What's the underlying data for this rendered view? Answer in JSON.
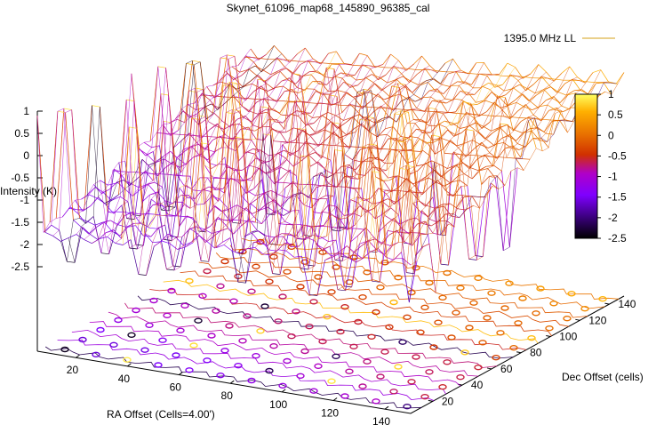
{
  "chart_data": {
    "type": "surface",
    "title": "Skynet_61096_map68_145890_96385_cal",
    "zlabel": "Intensity (K)",
    "xlabel": "RA Offset (Cells=4.00')",
    "ylabel": "Dec Offset (cells)",
    "legend": {
      "position": "top-right",
      "entries": [
        {
          "name": "1395.0 MHz LL",
          "color": "#d4a017"
        }
      ]
    },
    "z_ticks": [
      "1",
      "0.5",
      "0",
      "-0.5",
      "-1",
      "-1.5",
      "-2",
      "-2.5"
    ],
    "z_range": [
      -2.5,
      1
    ],
    "x_ticks": [
      "20",
      "40",
      "60",
      "80",
      "100",
      "120",
      "140"
    ],
    "x_range": [
      5,
      150
    ],
    "y_ticks": [
      "20",
      "40",
      "60",
      "80",
      "100",
      "120",
      "140"
    ],
    "y_range": [
      5,
      150
    ],
    "colorbar": {
      "ticks": [
        "1",
        "0.5",
        "0",
        "-0.5",
        "-1",
        "-1.5",
        "-2",
        "-2.5"
      ],
      "range": [
        -2.5,
        1
      ],
      "palette": [
        "#000000",
        "#3c0080",
        "#7f00ff",
        "#b000c8",
        "#d03000",
        "#e87000",
        "#ffb000",
        "#ffff60"
      ]
    },
    "surface_levels": {
      "near_ra_edge": -1.8,
      "mid": -0.6,
      "far_dec_edge": 0.5,
      "spike_min": -2.4,
      "spike_max": 0.9
    },
    "contours": true
  }
}
